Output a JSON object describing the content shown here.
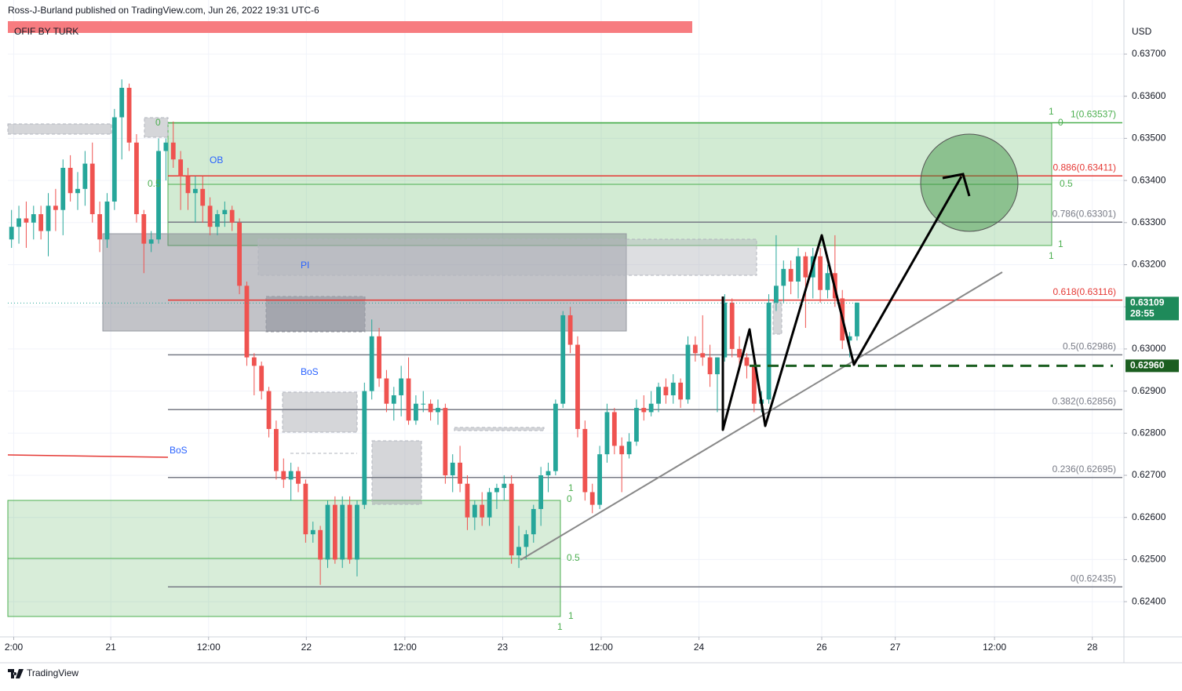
{
  "header": {
    "publisher": "Ross-J-Burland published on TradingView.com, Jun 26, 2022 19:31 UTC-6",
    "indicator": "OFIF BY TURK",
    "logo": "TradingView"
  },
  "chart_data": {
    "type": "candlestick",
    "currency": "USD",
    "up_color": "#26a69a",
    "down_color": "#ef5350",
    "ylim": [
      0.623164,
      0.638285
    ],
    "xlim": [
      -0.5,
      151.3
    ],
    "grid": true,
    "yticks": [
      {
        "value": 0.624,
        "label": "0.62400"
      },
      {
        "value": 0.625,
        "label": "0.62500"
      },
      {
        "value": 0.626,
        "label": "0.62600"
      },
      {
        "value": 0.627,
        "label": "0.62700"
      },
      {
        "value": 0.628,
        "label": "0.62800"
      },
      {
        "value": 0.629,
        "label": "0.62900"
      },
      {
        "value": 0.63,
        "label": "0.63000"
      },
      {
        "value": 0.631,
        "label": "0.63100"
      },
      {
        "value": 0.632,
        "label": "0.63200"
      },
      {
        "value": 0.633,
        "label": "0.63300"
      },
      {
        "value": 0.634,
        "label": "0.63400"
      },
      {
        "value": 0.635,
        "label": "0.63500"
      },
      {
        "value": 0.636,
        "label": "0.63600"
      },
      {
        "value": 0.637,
        "label": "0.63700"
      }
    ],
    "xticks": [
      {
        "value": 0.3,
        "label": "2:00"
      },
      {
        "value": 13.5,
        "label": "21"
      },
      {
        "value": 26.8,
        "label": "12:00"
      },
      {
        "value": 40.1,
        "label": "22"
      },
      {
        "value": 53.5,
        "label": "12:00"
      },
      {
        "value": 66.8,
        "label": "23"
      },
      {
        "value": 80.2,
        "label": "12:00"
      },
      {
        "value": 93.5,
        "label": "24"
      },
      {
        "value": 110.2,
        "label": "26"
      },
      {
        "value": 120.2,
        "label": "27"
      },
      {
        "value": 133.7,
        "label": "12:00"
      },
      {
        "value": 147.0,
        "label": "28"
      }
    ],
    "candles": [
      [
        0.6326,
        0.6333,
        0.6324,
        0.6329
      ],
      [
        0.6329,
        0.6334,
        0.6325,
        0.6331
      ],
      [
        0.6331,
        0.6335,
        0.6324,
        0.633
      ],
      [
        0.633,
        0.6334,
        0.6326,
        0.6332
      ],
      [
        0.6332,
        0.6334,
        0.6326,
        0.6328
      ],
      [
        0.6328,
        0.6337,
        0.6322,
        0.6334
      ],
      [
        0.6334,
        0.6338,
        0.6328,
        0.6333
      ],
      [
        0.6333,
        0.6345,
        0.6327,
        0.6343
      ],
      [
        0.6343,
        0.6346,
        0.6335,
        0.6337
      ],
      [
        0.6337,
        0.6342,
        0.6333,
        0.6338
      ],
      [
        0.6338,
        0.6347,
        0.6334,
        0.6344
      ],
      [
        0.6344,
        0.6349,
        0.633,
        0.6332
      ],
      [
        0.6332,
        0.6335,
        0.6323,
        0.6326
      ],
      [
        0.6326,
        0.6337,
        0.6324,
        0.6335
      ],
      [
        0.6335,
        0.6357,
        0.6333,
        0.6355
      ],
      [
        0.6355,
        0.6364,
        0.6345,
        0.6362
      ],
      [
        0.6362,
        0.6363,
        0.6347,
        0.6349
      ],
      [
        0.6349,
        0.6351,
        0.633,
        0.6332
      ],
      [
        0.6332,
        0.6333,
        0.6318,
        0.6325
      ],
      [
        0.6325,
        0.6328,
        0.6323,
        0.6326
      ],
      [
        0.6326,
        0.635,
        0.6325,
        0.6347
      ],
      [
        0.6347,
        0.635,
        0.634,
        0.6349
      ],
      [
        0.6349,
        0.6354,
        0.6343,
        0.6345
      ],
      [
        0.6345,
        0.6347,
        0.6333,
        0.6341
      ],
      [
        0.6341,
        0.6343,
        0.6333,
        0.6337
      ],
      [
        0.6337,
        0.6341,
        0.633,
        0.6338
      ],
      [
        0.6338,
        0.6341,
        0.633,
        0.6334
      ],
      [
        0.6334,
        0.6336,
        0.6327,
        0.6329
      ],
      [
        0.6329,
        0.6333,
        0.6327,
        0.6332
      ],
      [
        0.6332,
        0.6335,
        0.6329,
        0.6333
      ],
      [
        0.6333,
        0.6334,
        0.6328,
        0.633
      ],
      [
        0.633,
        0.6331,
        0.6313,
        0.6315
      ],
      [
        0.6315,
        0.6316,
        0.6296,
        0.6298
      ],
      [
        0.6298,
        0.6299,
        0.6289,
        0.6296
      ],
      [
        0.6296,
        0.6297,
        0.6288,
        0.629
      ],
      [
        0.629,
        0.6291,
        0.6279,
        0.6281
      ],
      [
        0.6281,
        0.6283,
        0.6269,
        0.6271
      ],
      [
        0.6271,
        0.6274,
        0.6267,
        0.6269
      ],
      [
        0.6269,
        0.6273,
        0.6264,
        0.6271
      ],
      [
        0.6271,
        0.6272,
        0.6266,
        0.6268
      ],
      [
        0.6268,
        0.6269,
        0.6254,
        0.6256
      ],
      [
        0.6256,
        0.6259,
        0.6254,
        0.6257
      ],
      [
        0.6257,
        0.6258,
        0.6244,
        0.625
      ],
      [
        0.625,
        0.6264,
        0.6248,
        0.6263
      ],
      [
        0.6263,
        0.6265,
        0.6249,
        0.625
      ],
      [
        0.625,
        0.6265,
        0.6248,
        0.6263
      ],
      [
        0.6263,
        0.6265,
        0.6249,
        0.625
      ],
      [
        0.625,
        0.6264,
        0.6246,
        0.6263
      ],
      [
        0.6263,
        0.6292,
        0.6262,
        0.629
      ],
      [
        0.629,
        0.6307,
        0.6288,
        0.6303
      ],
      [
        0.6303,
        0.6305,
        0.6291,
        0.6293
      ],
      [
        0.6293,
        0.6295,
        0.6285,
        0.6287
      ],
      [
        0.6287,
        0.6291,
        0.6283,
        0.6289
      ],
      [
        0.6289,
        0.6296,
        0.6284,
        0.6293
      ],
      [
        0.6293,
        0.6298,
        0.6282,
        0.6283
      ],
      [
        0.6283,
        0.6289,
        0.6282,
        0.6287
      ],
      [
        0.6287,
        0.629,
        0.6285,
        0.6287
      ],
      [
        0.6287,
        0.6288,
        0.6283,
        0.6285
      ],
      [
        0.6285,
        0.6288,
        0.6282,
        0.6286
      ],
      [
        0.6286,
        0.6287,
        0.6268,
        0.627
      ],
      [
        0.627,
        0.6275,
        0.6266,
        0.6273
      ],
      [
        0.6273,
        0.6277,
        0.6266,
        0.6268
      ],
      [
        0.6268,
        0.627,
        0.6257,
        0.626
      ],
      [
        0.626,
        0.6264,
        0.6257,
        0.6263
      ],
      [
        0.6263,
        0.6266,
        0.6258,
        0.626
      ],
      [
        0.626,
        0.6267,
        0.6258,
        0.6266
      ],
      [
        0.6266,
        0.6268,
        0.6262,
        0.6267
      ],
      [
        0.6267,
        0.627,
        0.6264,
        0.6268
      ],
      [
        0.6268,
        0.627,
        0.6249,
        0.6251
      ],
      [
        0.6251,
        0.6258,
        0.6248,
        0.6253
      ],
      [
        0.6253,
        0.6257,
        0.625,
        0.6256
      ],
      [
        0.6256,
        0.6263,
        0.6254,
        0.6262
      ],
      [
        0.6262,
        0.6272,
        0.6258,
        0.627
      ],
      [
        0.627,
        0.6273,
        0.6266,
        0.6271
      ],
      [
        0.6271,
        0.6288,
        0.627,
        0.6287
      ],
      [
        0.6287,
        0.6309,
        0.6286,
        0.6308
      ],
      [
        0.6308,
        0.631,
        0.6299,
        0.6301
      ],
      [
        0.6301,
        0.6303,
        0.6279,
        0.6281
      ],
      [
        0.6281,
        0.6283,
        0.6264,
        0.6266
      ],
      [
        0.6266,
        0.6268,
        0.6261,
        0.6263
      ],
      [
        0.6263,
        0.6277,
        0.6262,
        0.6275
      ],
      [
        0.6275,
        0.6287,
        0.6273,
        0.6285
      ],
      [
        0.6285,
        0.6286,
        0.6275,
        0.6277
      ],
      [
        0.6277,
        0.6279,
        0.6266,
        0.6275
      ],
      [
        0.6275,
        0.628,
        0.6274,
        0.6278
      ],
      [
        0.6278,
        0.6288,
        0.6277,
        0.6286
      ],
      [
        0.6286,
        0.6289,
        0.6283,
        0.6285
      ],
      [
        0.6285,
        0.629,
        0.6284,
        0.6287
      ],
      [
        0.6287,
        0.6292,
        0.6285,
        0.6291
      ],
      [
        0.6291,
        0.6293,
        0.6287,
        0.6289
      ],
      [
        0.6289,
        0.6294,
        0.6287,
        0.6292
      ],
      [
        0.6292,
        0.6293,
        0.6286,
        0.6288
      ],
      [
        0.6288,
        0.6303,
        0.6287,
        0.6301
      ],
      [
        0.6301,
        0.6303,
        0.6297,
        0.6299
      ],
      [
        0.6299,
        0.6308,
        0.6296,
        0.6298
      ],
      [
        0.6298,
        0.6301,
        0.6291,
        0.6294
      ],
      [
        0.6294,
        0.6298,
        0.6285,
        0.6298
      ],
      [
        0.6298,
        0.6313,
        0.6297,
        0.6311
      ],
      [
        0.6311,
        0.6312,
        0.6298,
        0.63
      ],
      [
        0.63,
        0.6303,
        0.6295,
        0.6298
      ],
      [
        0.6298,
        0.6299,
        0.6293,
        0.6296
      ],
      [
        0.6296,
        0.6298,
        0.6285,
        0.6287
      ],
      [
        0.6287,
        0.629,
        0.6285,
        0.6288
      ],
      [
        0.6288,
        0.6313,
        0.6287,
        0.6311
      ],
      [
        0.6311,
        0.6327,
        0.6309,
        0.6315
      ],
      [
        0.6315,
        0.6321,
        0.6311,
        0.6319
      ],
      [
        0.6319,
        0.6321,
        0.6313,
        0.6316
      ],
      [
        0.6316,
        0.6324,
        0.6312,
        0.6322
      ],
      [
        0.6322,
        0.6323,
        0.6305,
        0.6317
      ],
      [
        0.6317,
        0.6324,
        0.6312,
        0.6322
      ],
      [
        0.6322,
        0.6324,
        0.6311,
        0.6314
      ],
      [
        0.6314,
        0.632,
        0.6312,
        0.6318
      ],
      [
        0.6318,
        0.6327,
        0.631,
        0.6312
      ],
      [
        0.6312,
        0.6314,
        0.63,
        0.6302
      ],
      [
        0.6302,
        0.6304,
        0.6298,
        0.6303
      ],
      [
        0.6303,
        0.6311,
        0.6302,
        0.6311
      ]
    ],
    "fib_levels": [
      {
        "price": 0.63537,
        "label": "1(0.63537)",
        "color": "#4caf50"
      },
      {
        "price": 0.63411,
        "label": "0.886(0.63411)",
        "color": "#e53935"
      },
      {
        "price": 0.63301,
        "label": "0.786(0.63301)",
        "color": "#787b86"
      },
      {
        "price": 0.63116,
        "label": "0.618(0.63116)",
        "color": "#e53935"
      },
      {
        "price": 0.62986,
        "label": "0.5(0.62986)",
        "color": "#787b86"
      },
      {
        "price": 0.62856,
        "label": "0.382(0.62856)",
        "color": "#787b86"
      },
      {
        "price": 0.62695,
        "label": "0.236(0.62695)",
        "color": "#787b86"
      },
      {
        "price": 0.62435,
        "label": "0(0.62435)",
        "color": "#787b86"
      }
    ],
    "price_tags": [
      {
        "price": 0.63109,
        "label": "0.63109",
        "sub": "28:55",
        "color": "#1e8a5a"
      },
      {
        "price": 0.6296,
        "label": "0.62960",
        "color": "#1b5e20"
      }
    ],
    "annotations": [
      "OB",
      "PI",
      "BoS",
      "BoS",
      "0",
      "0.5",
      "1",
      "0",
      "0.5",
      "1",
      "1",
      "1",
      "0",
      "0.5",
      "1",
      "1"
    ]
  }
}
